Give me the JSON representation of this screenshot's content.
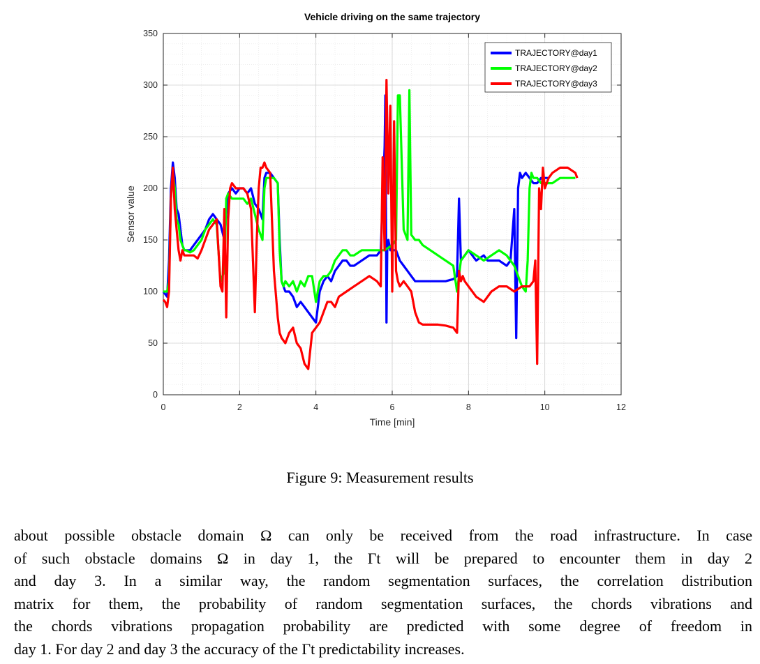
{
  "chart_data": {
    "type": "line",
    "title": "Vehicle driving on the same trajectory",
    "xlabel": "Time [min]",
    "ylabel": "Sensor value",
    "xlim": [
      0,
      12
    ],
    "ylim": [
      0,
      350
    ],
    "xticks": [
      0,
      2,
      4,
      6,
      8,
      10,
      12
    ],
    "yticks": [
      0,
      50,
      100,
      150,
      200,
      250,
      300,
      350
    ],
    "grid": true,
    "minor_grid": true,
    "legend_position": "top-right",
    "series": [
      {
        "name": "TRAJECTORY@day1",
        "color": "#0000ff",
        "x": [
          0,
          0.1,
          0.15,
          0.2,
          0.25,
          0.3,
          0.35,
          0.4,
          0.45,
          0.5,
          0.55,
          0.6,
          0.7,
          0.8,
          0.9,
          1.0,
          1.1,
          1.2,
          1.3,
          1.4,
          1.5,
          1.6,
          1.65,
          1.7,
          1.8,
          1.9,
          2.0,
          2.1,
          2.2,
          2.3,
          2.4,
          2.5,
          2.6,
          2.65,
          2.7,
          2.8,
          2.9,
          3.0,
          3.05,
          3.1,
          3.15,
          3.2,
          3.3,
          3.4,
          3.5,
          3.6,
          3.7,
          3.8,
          3.9,
          4.0,
          4.1,
          4.2,
          4.3,
          4.4,
          4.5,
          4.6,
          4.7,
          4.8,
          4.9,
          5.0,
          5.2,
          5.4,
          5.6,
          5.7,
          5.8,
          5.82,
          5.85,
          5.87,
          5.9,
          5.95,
          6.0,
          6.1,
          6.2,
          6.3,
          6.4,
          6.5,
          6.6,
          6.7,
          6.8,
          7.0,
          7.2,
          7.4,
          7.6,
          7.7,
          7.75,
          7.8,
          7.9,
          8.0,
          8.2,
          8.4,
          8.5,
          8.6,
          8.8,
          9.0,
          9.1,
          9.2,
          9.25,
          9.3,
          9.35,
          9.4,
          9.5,
          9.6,
          9.7,
          9.8,
          9.9,
          10.0,
          10.1
        ],
        "y": [
          100,
          95,
          130,
          200,
          225,
          210,
          180,
          175,
          160,
          145,
          140,
          140,
          140,
          145,
          150,
          155,
          160,
          170,
          175,
          170,
          165,
          150,
          175,
          195,
          200,
          195,
          200,
          200,
          195,
          200,
          185,
          180,
          170,
          210,
          215,
          215,
          210,
          205,
          150,
          110,
          105,
          100,
          100,
          95,
          85,
          90,
          85,
          80,
          75,
          70,
          100,
          110,
          115,
          110,
          120,
          125,
          130,
          130,
          125,
          125,
          130,
          135,
          135,
          140,
          240,
          290,
          70,
          140,
          150,
          140,
          140,
          140,
          130,
          125,
          120,
          115,
          110,
          110,
          110,
          110,
          110,
          110,
          112,
          115,
          190,
          130,
          135,
          140,
          130,
          135,
          130,
          130,
          130,
          125,
          130,
          180,
          55,
          200,
          215,
          210,
          215,
          210,
          205,
          205,
          210,
          210,
          210
        ]
      },
      {
        "name": "TRAJECTORY@day2",
        "color": "#00ff00",
        "x": [
          0,
          0.1,
          0.15,
          0.2,
          0.25,
          0.3,
          0.35,
          0.4,
          0.45,
          0.5,
          0.55,
          0.6,
          0.7,
          0.8,
          0.9,
          1.0,
          1.1,
          1.2,
          1.3,
          1.4,
          1.5,
          1.6,
          1.65,
          1.7,
          1.8,
          1.9,
          2.0,
          2.1,
          2.2,
          2.3,
          2.4,
          2.5,
          2.6,
          2.65,
          2.7,
          2.8,
          2.9,
          3.0,
          3.05,
          3.1,
          3.15,
          3.2,
          3.3,
          3.4,
          3.5,
          3.6,
          3.7,
          3.8,
          3.9,
          4.0,
          4.1,
          4.2,
          4.3,
          4.4,
          4.5,
          4.6,
          4.7,
          4.8,
          4.9,
          5.0,
          5.2,
          5.4,
          5.6,
          5.8,
          6.0,
          6.1,
          6.15,
          6.2,
          6.3,
          6.4,
          6.45,
          6.5,
          6.6,
          6.7,
          6.8,
          7.0,
          7.2,
          7.4,
          7.6,
          7.7,
          7.8,
          7.9,
          8.0,
          8.2,
          8.4,
          8.6,
          8.8,
          9.0,
          9.2,
          9.4,
          9.5,
          9.55,
          9.6,
          9.65,
          9.7,
          9.8,
          9.9,
          10.0,
          10.2,
          10.4,
          10.6,
          10.8
        ],
        "y": [
          100,
          100,
          110,
          190,
          215,
          200,
          170,
          165,
          150,
          145,
          140,
          140,
          138,
          140,
          145,
          150,
          160,
          165,
          170,
          165,
          110,
          120,
          190,
          195,
          190,
          190,
          190,
          190,
          185,
          190,
          175,
          160,
          150,
          200,
          210,
          210,
          210,
          205,
          140,
          110,
          105,
          110,
          105,
          110,
          100,
          110,
          105,
          115,
          115,
          90,
          110,
          115,
          115,
          120,
          130,
          135,
          140,
          140,
          135,
          135,
          140,
          140,
          140,
          140,
          145,
          150,
          290,
          290,
          160,
          150,
          295,
          155,
          150,
          150,
          145,
          140,
          135,
          130,
          125,
          100,
          130,
          135,
          140,
          135,
          130,
          135,
          140,
          135,
          125,
          105,
          100,
          130,
          200,
          215,
          210,
          210,
          205,
          205,
          205,
          210,
          210,
          210
        ]
      },
      {
        "name": "TRAJECTORY@day3",
        "color": "#ff0000",
        "x": [
          0,
          0.05,
          0.1,
          0.15,
          0.2,
          0.25,
          0.3,
          0.35,
          0.4,
          0.45,
          0.5,
          0.55,
          0.6,
          0.7,
          0.8,
          0.9,
          1.0,
          1.1,
          1.2,
          1.3,
          1.4,
          1.5,
          1.55,
          1.6,
          1.65,
          1.7,
          1.75,
          1.8,
          1.9,
          2.0,
          2.1,
          2.2,
          2.3,
          2.4,
          2.45,
          2.5,
          2.55,
          2.6,
          2.65,
          2.7,
          2.8,
          2.9,
          3.0,
          3.05,
          3.1,
          3.2,
          3.3,
          3.4,
          3.5,
          3.6,
          3.7,
          3.8,
          3.9,
          4.0,
          4.1,
          4.2,
          4.3,
          4.4,
          4.5,
          4.6,
          4.8,
          5.0,
          5.2,
          5.4,
          5.6,
          5.7,
          5.75,
          5.8,
          5.85,
          5.9,
          5.95,
          6.0,
          6.05,
          6.1,
          6.15,
          6.2,
          6.3,
          6.4,
          6.5,
          6.6,
          6.7,
          6.8,
          7.0,
          7.2,
          7.4,
          7.6,
          7.7,
          7.75,
          7.8,
          7.85,
          7.9,
          8.0,
          8.1,
          8.2,
          8.4,
          8.6,
          8.8,
          9.0,
          9.2,
          9.4,
          9.6,
          9.7,
          9.75,
          9.8,
          9.85,
          9.9,
          9.95,
          10.0,
          10.1,
          10.2,
          10.4,
          10.6,
          10.8,
          10.85
        ],
        "y": [
          92,
          90,
          85,
          100,
          190,
          220,
          180,
          160,
          140,
          130,
          140,
          135,
          135,
          135,
          135,
          132,
          140,
          150,
          160,
          165,
          170,
          105,
          100,
          180,
          75,
          170,
          200,
          205,
          200,
          200,
          200,
          195,
          180,
          80,
          150,
          200,
          220,
          220,
          225,
          220,
          215,
          120,
          75,
          60,
          55,
          50,
          60,
          65,
          50,
          45,
          30,
          25,
          60,
          65,
          70,
          80,
          90,
          90,
          85,
          95,
          100,
          105,
          110,
          115,
          110,
          105,
          230,
          140,
          305,
          195,
          280,
          100,
          265,
          120,
          110,
          105,
          110,
          105,
          100,
          80,
          70,
          68,
          68,
          68,
          67,
          65,
          60,
          120,
          110,
          115,
          110,
          105,
          100,
          95,
          90,
          100,
          105,
          105,
          100,
          105,
          105,
          110,
          130,
          30,
          200,
          180,
          220,
          200,
          210,
          215,
          220,
          220,
          215,
          210
        ]
      }
    ]
  },
  "caption": "Figure 9: Measurement results",
  "paragraph": {
    "line1": "about possible obstacle domain Ω can only be received from the road infrastructure. In case",
    "line2": "of such obstacle domains Ω in day 1, the Γt will be prepared to encounter them in day 2",
    "line3": "and day 3. In a similar way, the random segmentation surfaces, the correlation distribution",
    "line4": "matrix for them, the probability of random segmentation surfaces, the chords vibrations and",
    "line5": "the chords vibrations propagation probability are predicted with some degree of freedom in",
    "line6": "day 1. For day 2 and day 3 the accuracy of the Γt predictability increases."
  }
}
